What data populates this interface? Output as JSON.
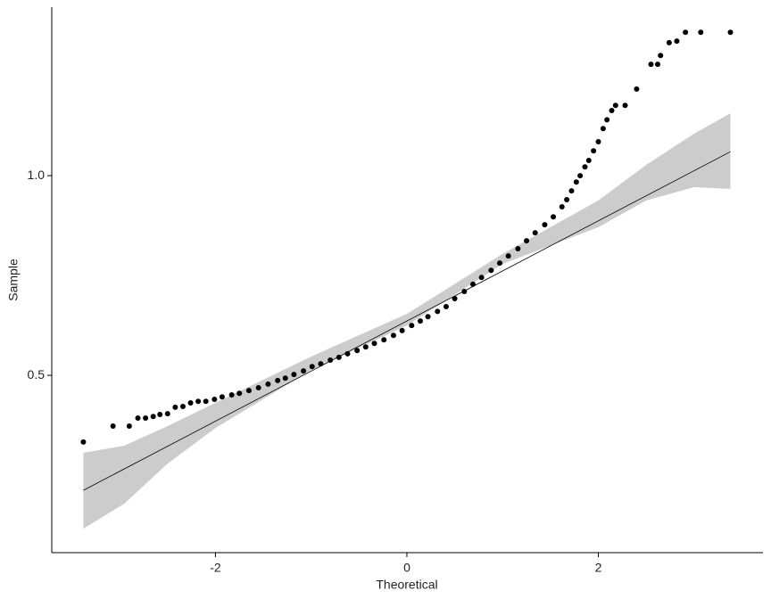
{
  "chart_data": {
    "type": "scatter",
    "x_label": "Theoretical",
    "y_label": "Sample",
    "xlim": [
      -3.71,
      3.72
    ],
    "ylim": [
      0.056,
      1.422
    ],
    "xticks": [
      -2,
      0,
      2
    ],
    "yticks": [
      0.5,
      {
        "value": 1,
        "label": "1.0"
      }
    ],
    "color": "#000000",
    "x": [
      -3.38,
      -3.07,
      -2.9,
      -2.81,
      -2.73,
      -2.65,
      -2.58,
      -2.5,
      -2.42,
      -2.34,
      -2.26,
      -2.18,
      -2.1,
      -2.01,
      -1.93,
      -1.83,
      -1.75,
      -1.65,
      -1.55,
      -1.45,
      -1.35,
      -1.27,
      -1.18,
      -1.08,
      -0.99,
      -0.9,
      -0.8,
      -0.71,
      -0.62,
      -0.52,
      -0.43,
      -0.34,
      -0.24,
      -0.14,
      -0.05,
      0.05,
      0.14,
      0.22,
      0.32,
      0.41,
      0.5,
      0.6,
      0.69,
      0.78,
      0.88,
      0.97,
      1.06,
      1.16,
      1.25,
      1.34,
      1.44,
      1.53,
      1.62,
      1.67,
      1.72,
      1.77,
      1.81,
      1.86,
      1.9,
      1.95,
      2.0,
      2.05,
      2.09,
      2.14,
      2.18,
      2.28,
      2.4,
      2.55,
      2.62,
      2.65,
      2.74,
      2.82,
      2.91,
      3.07,
      3.38
    ],
    "values": [
      0.333,
      0.373,
      0.373,
      0.393,
      0.393,
      0.397,
      0.402,
      0.404,
      0.42,
      0.422,
      0.431,
      0.435,
      0.435,
      0.44,
      0.446,
      0.451,
      0.455,
      0.462,
      0.469,
      0.478,
      0.487,
      0.493,
      0.502,
      0.511,
      0.522,
      0.529,
      0.538,
      0.545,
      0.554,
      0.562,
      0.571,
      0.58,
      0.589,
      0.6,
      0.612,
      0.625,
      0.636,
      0.647,
      0.66,
      0.672,
      0.692,
      0.71,
      0.728,
      0.745,
      0.763,
      0.781,
      0.799,
      0.817,
      0.837,
      0.857,
      0.877,
      0.897,
      0.922,
      0.94,
      0.962,
      0.984,
      1.0,
      1.022,
      1.038,
      1.062,
      1.085,
      1.118,
      1.14,
      1.163,
      1.176,
      1.176,
      1.217,
      1.279,
      1.279,
      1.301,
      1.333,
      1.337,
      1.359,
      1.359,
      1.359
    ],
    "fit_line": {
      "x": [
        -3.38,
        3.38
      ],
      "values": [
        0.212,
        1.06
      ],
      "color": "#000000"
    },
    "confidence_band": {
      "x": [
        -3.38,
        -2.95,
        -2.5,
        -2,
        -1,
        0,
        1,
        2,
        2.5,
        3,
        3.38
      ],
      "lower": [
        0.116,
        0.179,
        0.279,
        0.368,
        0.513,
        0.625,
        0.779,
        0.871,
        0.938,
        0.971,
        0.967
      ],
      "upper": [
        0.306,
        0.324,
        0.373,
        0.431,
        0.547,
        0.654,
        0.804,
        0.938,
        1.027,
        1.105,
        1.156
      ],
      "color": "#cccccc"
    }
  }
}
